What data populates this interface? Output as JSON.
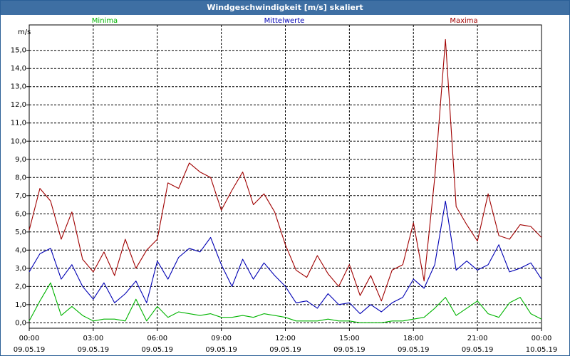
{
  "window": {
    "title": "Windgeschwindigkeit [m/s] skaliert"
  },
  "chart_data": {
    "type": "line",
    "title": "Windgeschwindigkeit [m/s] skaliert",
    "ylabel": "m/s",
    "xlabel": "",
    "ylim": [
      -0.3,
      16.4
    ],
    "xlim": [
      0,
      24
    ],
    "y_ticks": [
      "0,0",
      "1,0",
      "2,0",
      "3,0",
      "4,0",
      "5,0",
      "6,0",
      "7,0",
      "8,0",
      "9,0",
      "10,0",
      "11,0",
      "12,0",
      "13,0",
      "14,0",
      "15,0"
    ],
    "x_ticks": [
      {
        "time": "00:00",
        "date": "09.05.19"
      },
      {
        "time": "03:00",
        "date": "09.05.19"
      },
      {
        "time": "06:00",
        "date": "09.05.19"
      },
      {
        "time": "09:00",
        "date": "09.05.19"
      },
      {
        "time": "12:00",
        "date": "09.05.19"
      },
      {
        "time": "15:00",
        "date": "09.05.19"
      },
      {
        "time": "18:00",
        "date": "09.05.19"
      },
      {
        "time": "21:00",
        "date": "09.05.19"
      },
      {
        "time": "00:00",
        "date": "10.05.19"
      }
    ],
    "grid": true,
    "series": [
      {
        "name": "Minima",
        "color": "#00b400",
        "x": [
          0,
          0.5,
          1,
          1.5,
          2,
          2.5,
          3,
          3.5,
          4,
          4.5,
          5,
          5.5,
          6,
          6.5,
          7,
          7.5,
          8,
          8.5,
          9,
          9.5,
          10,
          10.5,
          11,
          11.5,
          12,
          12.5,
          13,
          13.5,
          14,
          14.5,
          15,
          15.5,
          16,
          16.5,
          17,
          17.5,
          18,
          18.5,
          19,
          19.5,
          20,
          20.5,
          21,
          21.5,
          22,
          22.5,
          23,
          23.5,
          24
        ],
        "values": [
          0.1,
          1.2,
          2.2,
          0.4,
          0.9,
          0.4,
          0.1,
          0.2,
          0.2,
          0.1,
          1.3,
          0.1,
          0.9,
          0.3,
          0.6,
          0.5,
          0.4,
          0.5,
          0.3,
          0.3,
          0.4,
          0.3,
          0.5,
          0.4,
          0.3,
          0.1,
          0.1,
          0.1,
          0.2,
          0.1,
          0.1,
          0.0,
          0.0,
          0.0,
          0.1,
          0.1,
          0.2,
          0.3,
          0.8,
          1.4,
          0.4,
          0.8,
          1.2,
          0.5,
          0.3,
          1.1,
          1.4,
          0.5,
          0.2
        ]
      },
      {
        "name": "Mittelwerte",
        "color": "#0000b4",
        "x": [
          0,
          0.5,
          1,
          1.5,
          2,
          2.5,
          3,
          3.5,
          4,
          4.5,
          5,
          5.5,
          6,
          6.5,
          7,
          7.5,
          8,
          8.5,
          9,
          9.5,
          10,
          10.5,
          11,
          11.5,
          12,
          12.5,
          13,
          13.5,
          14,
          14.5,
          15,
          15.5,
          16,
          16.5,
          17,
          17.5,
          18,
          18.5,
          19,
          19.5,
          20,
          20.5,
          21,
          21.5,
          22,
          22.5,
          23,
          23.5,
          24
        ],
        "values": [
          2.8,
          3.8,
          4.1,
          2.4,
          3.2,
          2.0,
          1.3,
          2.2,
          1.1,
          1.6,
          2.3,
          1.1,
          3.4,
          2.4,
          3.6,
          4.1,
          3.9,
          4.7,
          3.2,
          2.0,
          3.5,
          2.4,
          3.3,
          2.6,
          2.0,
          1.1,
          1.2,
          0.8,
          1.6,
          1.0,
          1.1,
          0.5,
          1.0,
          0.6,
          1.1,
          1.4,
          2.4,
          1.9,
          3.2,
          6.7,
          2.9,
          3.4,
          2.9,
          3.2,
          4.3,
          2.8,
          3.0,
          3.3,
          2.4
        ]
      },
      {
        "name": "Maxima",
        "color": "#a00000",
        "x": [
          0,
          0.5,
          1,
          1.5,
          2,
          2.5,
          3,
          3.5,
          4,
          4.5,
          5,
          5.5,
          6,
          6.5,
          7,
          7.5,
          8,
          8.5,
          9,
          9.5,
          10,
          10.5,
          11,
          11.5,
          12,
          12.5,
          13,
          13.5,
          14,
          14.5,
          15,
          15.5,
          16,
          16.5,
          17,
          17.5,
          18,
          18.5,
          19,
          19.5,
          20,
          20.5,
          21,
          21.5,
          22,
          22.5,
          23,
          23.5,
          24
        ],
        "values": [
          5.1,
          7.4,
          6.7,
          4.6,
          6.1,
          3.5,
          2.8,
          3.9,
          2.6,
          4.6,
          3.0,
          4.0,
          4.6,
          7.7,
          7.4,
          8.8,
          8.3,
          8.0,
          6.2,
          7.3,
          8.3,
          6.5,
          7.1,
          6.1,
          4.3,
          2.9,
          2.5,
          3.7,
          2.7,
          2.0,
          3.2,
          1.5,
          2.6,
          1.2,
          2.9,
          3.2,
          5.5,
          2.3,
          8.0,
          15.6,
          6.4,
          5.4,
          4.5,
          7.1,
          4.8,
          4.6,
          5.4,
          5.3,
          4.7
        ]
      }
    ]
  }
}
